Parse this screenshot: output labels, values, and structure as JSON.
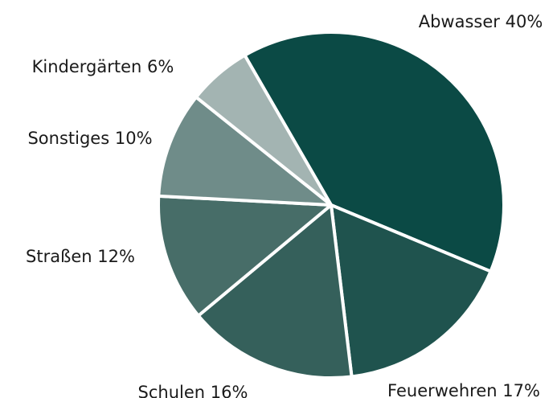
{
  "chart_data": {
    "type": "pie",
    "categories": [
      "Abwasser",
      "Feuerwehren",
      "Schulen",
      "Straßen",
      "Sonstiges",
      "Kindergärten"
    ],
    "values": [
      40,
      17,
      16,
      12,
      10,
      6
    ],
    "value_labels": [
      "40%",
      "17%",
      "16%",
      "12%",
      "10%",
      "6%"
    ],
    "colors": [
      "#0b4a45",
      "#1f534e",
      "#35605b",
      "#476d68",
      "#6f8c89",
      "#a3b4b2"
    ]
  }
}
